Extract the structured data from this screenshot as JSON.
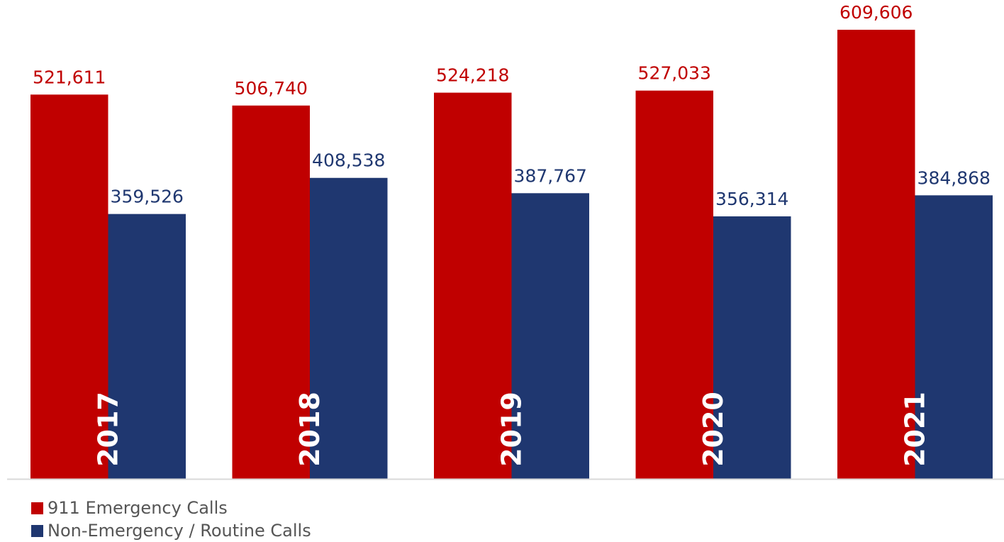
{
  "chart_data": {
    "type": "bar",
    "categories": [
      "2017",
      "2018",
      "2019",
      "2020",
      "2021"
    ],
    "series": [
      {
        "name": "911 Emergency Calls",
        "color": "#C00000",
        "values": [
          521611,
          506740,
          524218,
          527033,
          609606
        ],
        "labels": [
          "521,611",
          "506,740",
          "524,218",
          "527,033",
          "609,606"
        ]
      },
      {
        "name": "Non-Emergency / Routine Calls",
        "color": "#1F3770",
        "values": [
          359526,
          408538,
          387767,
          356314,
          384868
        ],
        "labels": [
          "359,526",
          "408,538",
          "387,767",
          "356,314",
          "384,868"
        ]
      }
    ],
    "title": "",
    "xlabel": "",
    "ylabel": "",
    "ylim": [
      0,
      650000
    ],
    "grid": false,
    "legend": "bottom-left",
    "axis_color": "#D9D9D9"
  }
}
